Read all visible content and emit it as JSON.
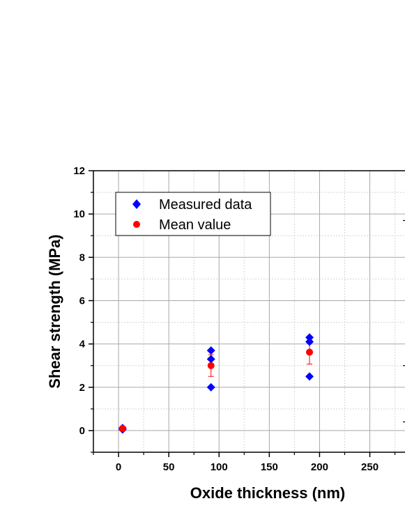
{
  "chart_data": {
    "type": "scatter",
    "xlabel": "Oxide thickness (nm)",
    "ylabel": "Shear strength (MPa)",
    "xlim": [
      -25,
      285
    ],
    "ylim": [
      -1,
      12
    ],
    "xticks": [
      0,
      50,
      100,
      150,
      200,
      250
    ],
    "yticks": [
      0,
      2,
      4,
      6,
      8,
      10,
      12
    ],
    "grid": true,
    "legend_position": "top-left",
    "series": [
      {
        "name": "Measured data",
        "marker": "diamond",
        "color": "#0000ff",
        "points": [
          {
            "x": 4,
            "y": 0.05
          },
          {
            "x": 4,
            "y": 0.12
          },
          {
            "x": 92,
            "y": 3.7
          },
          {
            "x": 92,
            "y": 3.3
          },
          {
            "x": 92,
            "y": 2.0
          },
          {
            "x": 190,
            "y": 4.3
          },
          {
            "x": 190,
            "y": 4.1
          },
          {
            "x": 190,
            "y": 2.5
          }
        ]
      },
      {
        "name": "Mean value",
        "marker": "circle",
        "color": "#ff0000",
        "points": [
          {
            "x": 4,
            "y": 0.1,
            "err": 0.04
          },
          {
            "x": 92,
            "y": 3.0,
            "err": 0.5
          },
          {
            "x": 190,
            "y": 3.62,
            "err": 0.55
          }
        ]
      }
    ]
  }
}
